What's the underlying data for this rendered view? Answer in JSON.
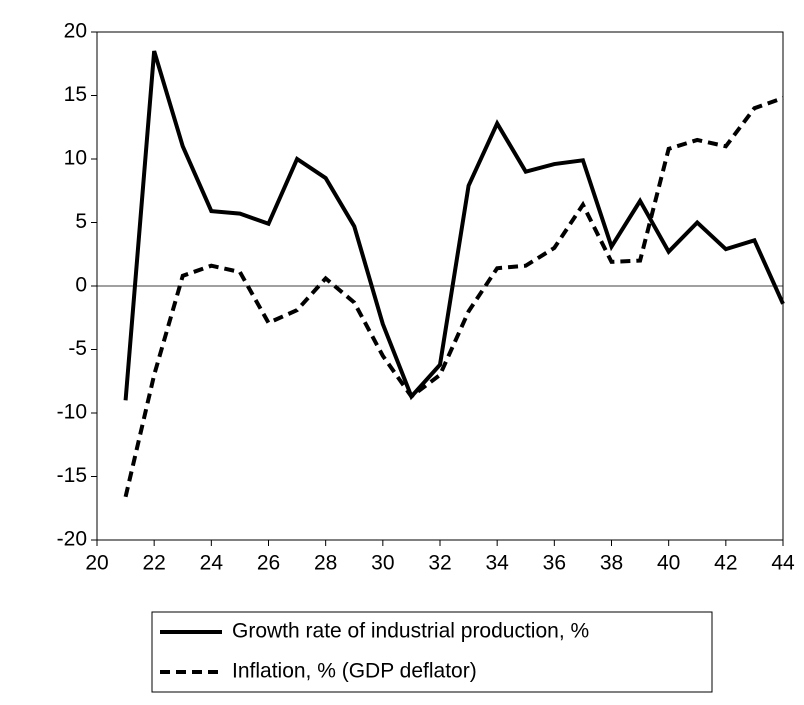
{
  "chart_data": {
    "type": "line",
    "x": [
      21,
      22,
      23,
      24,
      25,
      26,
      27,
      28,
      29,
      30,
      31,
      32,
      33,
      34,
      35,
      36,
      37,
      38,
      39,
      40,
      41,
      42,
      43,
      44
    ],
    "series": [
      {
        "name": "Growth rate of industrial production, %",
        "color": "#000000",
        "line_style": "solid",
        "values": [
          -9,
          18.5,
          11,
          5.9,
          5.7,
          4.9,
          10,
          8.5,
          4.7,
          -3,
          -8.7,
          -6.2,
          7.9,
          12.8,
          9,
          9.6,
          9.9,
          3.1,
          6.7,
          2.7,
          5,
          2.9,
          3.6,
          -1.4
        ]
      },
      {
        "name": "Inflation, % (GDP deflator)",
        "color": "#000000",
        "line_style": "dashed",
        "values": [
          -16.6,
          -7,
          0.8,
          1.6,
          1.1,
          -2.9,
          -1.9,
          0.6,
          -1.3,
          -5.5,
          -8.7,
          -7,
          -2,
          1.4,
          1.6,
          3,
          6.4,
          1.9,
          2,
          10.8,
          11.5,
          11,
          14,
          14.8
        ]
      }
    ],
    "xlim": [
      20,
      44
    ],
    "xticks": [
      20,
      22,
      24,
      26,
      28,
      30,
      32,
      34,
      36,
      38,
      40,
      42,
      44
    ],
    "ylim": [
      -20,
      20
    ],
    "yticks": [
      -20,
      -15,
      -10,
      -5,
      0,
      5,
      10,
      15,
      20
    ],
    "zero_line": true,
    "legend": "bottom"
  }
}
